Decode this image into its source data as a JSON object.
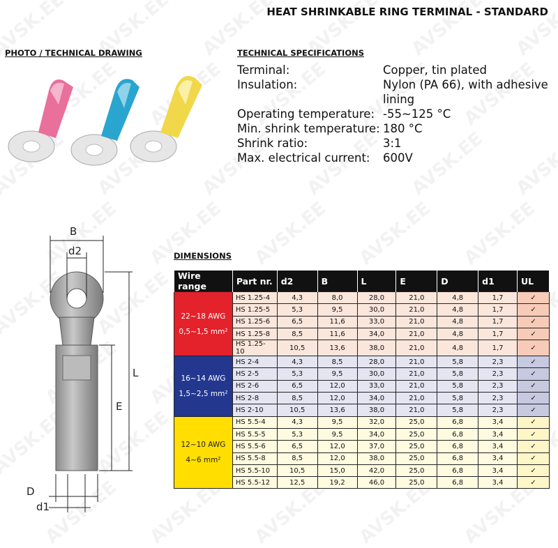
{
  "title": "HEAT SHRINKABLE RING TERMINAL - STANDARD",
  "watermark": "AVSK.EE",
  "photo_heading": "PHOTO / TECHNICAL DRAWING",
  "specs_heading": "TECHNICAL SPECIFICATIONS",
  "specs": [
    {
      "label": "Terminal:",
      "value": "Copper, tin plated"
    },
    {
      "label": "Insulation:",
      "value": "Nylon (PA 66), with adhesive lining"
    },
    {
      "label": "Operating temperature:",
      "value": "-55~125 °C"
    },
    {
      "label": "Min. shrink temperature:",
      "value": "180 °C"
    },
    {
      "label": "Shrink ratio:",
      "value": "3:1"
    },
    {
      "label": "Max. electrical current:",
      "value": "600V"
    }
  ],
  "drawing_labels": {
    "B": "B",
    "d2": "d2",
    "L": "L",
    "E": "E",
    "D": "D",
    "d1": "d1"
  },
  "dimensions_heading": "DIMENSIONS",
  "colors": {
    "red": "#e3222b",
    "blue": "#23378f",
    "yellow": "#ffde00"
  },
  "table": {
    "headers": [
      "Wire range",
      "Part nr.",
      "d2",
      "B",
      "L",
      "E",
      "D",
      "d1",
      "UL"
    ],
    "groups": [
      {
        "awg": "22~18 AWG",
        "mm": "0,5~1,5 mm²",
        "rows": [
          [
            "HS 1.25-4",
            "4,3",
            "8,0",
            "28,0",
            "21,0",
            "4,8",
            "1,7",
            "✓"
          ],
          [
            "HS 1.25-5",
            "5,3",
            "9,5",
            "30,0",
            "21,0",
            "4,8",
            "1,7",
            "✓"
          ],
          [
            "HS 1.25-6",
            "6,5",
            "11,6",
            "33,0",
            "21,0",
            "4,8",
            "1,7",
            "✓"
          ],
          [
            "HS 1.25-8",
            "8,5",
            "11,6",
            "34,0",
            "21,0",
            "4,8",
            "1,7",
            "✓"
          ],
          [
            "HS 1.25-10",
            "10,5",
            "13,6",
            "38,0",
            "21,0",
            "4,8",
            "1,7",
            "✓"
          ]
        ]
      },
      {
        "awg": "16~14 AWG",
        "mm": "1,5~2,5 mm²",
        "rows": [
          [
            "HS 2-4",
            "4,3",
            "8,5",
            "28,0",
            "21,0",
            "5,8",
            "2,3",
            "✓"
          ],
          [
            "HS 2-5",
            "5,3",
            "9,5",
            "30,0",
            "21,0",
            "5,8",
            "2,3",
            "✓"
          ],
          [
            "HS 2-6",
            "6,5",
            "12,0",
            "33,0",
            "21,0",
            "5,8",
            "2,3",
            "✓"
          ],
          [
            "HS 2-8",
            "8,5",
            "12,0",
            "34,0",
            "21,0",
            "5,8",
            "2,3",
            "✓"
          ],
          [
            "HS 2-10",
            "10,5",
            "13,6",
            "38,0",
            "21,0",
            "5,8",
            "2,3",
            "✓"
          ]
        ]
      },
      {
        "awg": "12~10 AWG",
        "mm": "4~6 mm²",
        "rows": [
          [
            "HS 5.5-4",
            "4,3",
            "9,5",
            "32,0",
            "25,0",
            "6,8",
            "3,4",
            "✓"
          ],
          [
            "HS 5.5-5",
            "5,3",
            "9,5",
            "34,0",
            "25,0",
            "6,8",
            "3,4",
            "✓"
          ],
          [
            "HS 5.5-6",
            "6,5",
            "12,0",
            "37,0",
            "25,0",
            "6,8",
            "3,4",
            "✓"
          ],
          [
            "HS 5.5-8",
            "8,5",
            "12,0",
            "38,0",
            "25,0",
            "6,8",
            "3,4",
            "✓"
          ],
          [
            "HS 5.5-10",
            "10,5",
            "15,0",
            "42,0",
            "25,0",
            "6,8",
            "3,4",
            "✓"
          ],
          [
            "HS 5.5-12",
            "12,5",
            "19,2",
            "46,0",
            "25,0",
            "6,8",
            "3,4",
            "✓"
          ]
        ]
      }
    ]
  }
}
